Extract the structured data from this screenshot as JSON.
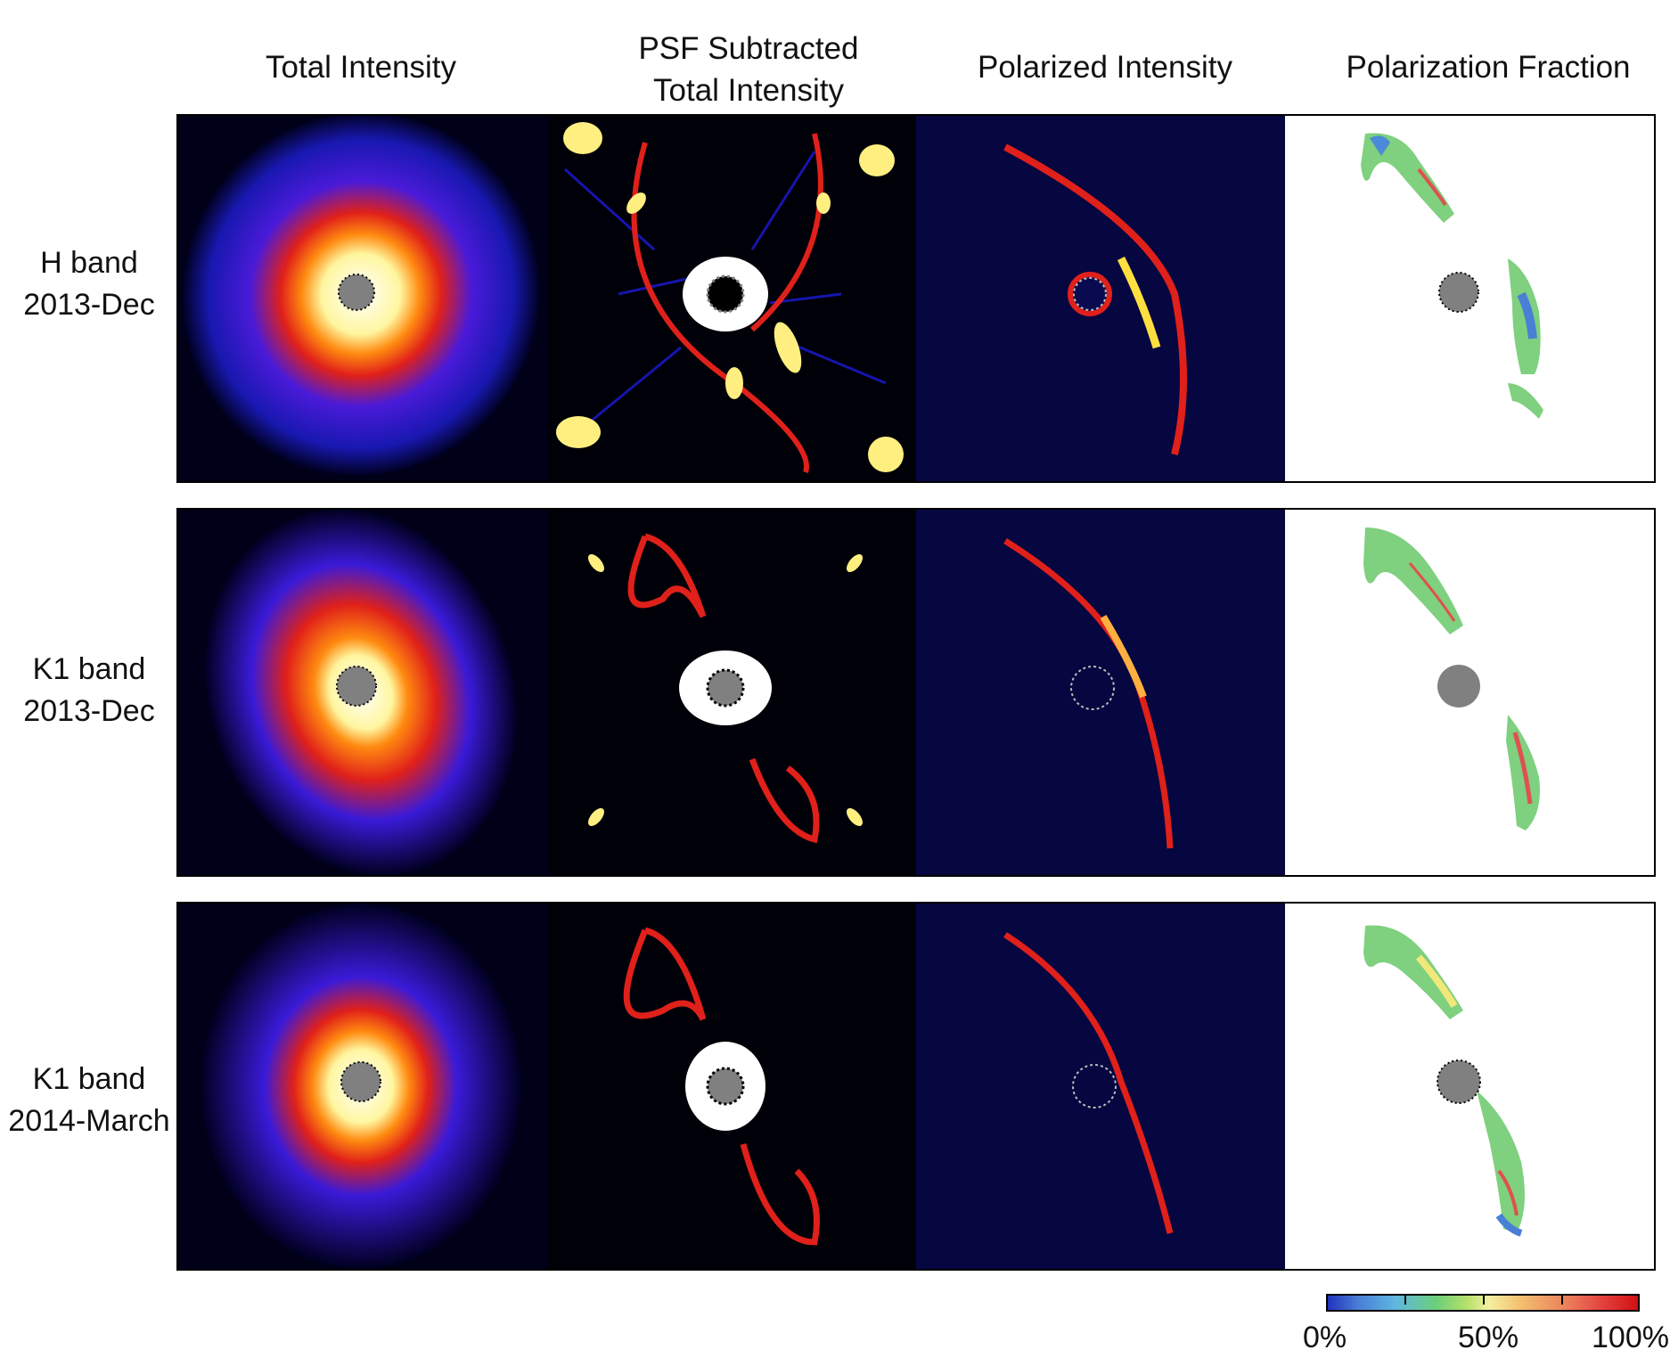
{
  "columns": [
    {
      "line1": "Total Intensity",
      "line2": ""
    },
    {
      "line1": "PSF Subtracted",
      "line2": "Total Intensity"
    },
    {
      "line1": "Polarized Intensity",
      "line2": ""
    },
    {
      "line1": "Polarization Fraction",
      "line2": ""
    }
  ],
  "rows": [
    {
      "band": "H band",
      "date": "2013-Dec"
    },
    {
      "band": "K1 band",
      "date": "2013-Dec"
    },
    {
      "band": "K1 band",
      "date": "2014-March"
    }
  ],
  "colorbar": {
    "labels": [
      "0%",
      "50%",
      "100%"
    ],
    "range": [
      0,
      100
    ],
    "unit": "%",
    "colormap": [
      "#2233bb",
      "#5fb7e0",
      "#6ccf7a",
      "#f3f0a0",
      "#ea7b5a",
      "#d11010"
    ]
  },
  "colors": {
    "background_dark": "#000010",
    "halo_blue": "#1a1ad8",
    "ring_red": "#e0201a",
    "core_white": "#ffffff",
    "mask_gray": "#808080"
  }
}
